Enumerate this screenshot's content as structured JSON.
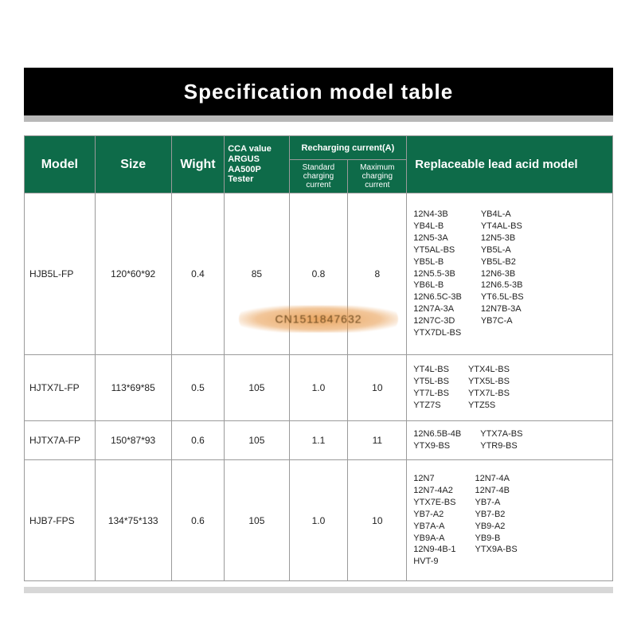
{
  "title": "Specification model table",
  "colors": {
    "title_bg": "#000000",
    "title_fg": "#ffffff",
    "header_bg": "#0e6b49",
    "header_fg": "#ffffff",
    "border": "#9a9a9a",
    "cell_fg": "#222222",
    "gray_band_top": "#b8b8b8",
    "gray_band_bottom": "#d7d7d7",
    "watermark_tint": "#e79746",
    "background": "#ffffff"
  },
  "typography": {
    "title_fontsize_pt": 20,
    "header_big_pt": 12,
    "header_small_pt": 8,
    "body_pt": 9,
    "replaceable_list_pt": 8
  },
  "columns": [
    {
      "key": "model",
      "label": "Model",
      "width_pct": 12
    },
    {
      "key": "size",
      "label": "Size",
      "width_pct": 13
    },
    {
      "key": "wight",
      "label": "Wight",
      "width_pct": 9
    },
    {
      "key": "cca",
      "label": "CCA value ARGUS AA500P Tester",
      "width_pct": 11
    },
    {
      "key": "rc",
      "label": "Recharging current(A)",
      "width_pct": 20,
      "sub": [
        {
          "key": "rc_std",
          "label": "Standard charging current"
        },
        {
          "key": "rc_max",
          "label": "Maximum charging current"
        }
      ]
    },
    {
      "key": "rep",
      "label": "Replaceable lead acid model",
      "width_pct": 35
    }
  ],
  "rows": [
    {
      "model": "HJB5L-FP",
      "size": "120*60*92",
      "wight": "0.4",
      "cca": "85",
      "rc_std": "0.8",
      "rc_max": "8",
      "rep_col1": [
        "12N4-3B",
        "YB4L-B",
        "12N5-3A",
        "YT5AL-BS",
        "YB5L-B",
        "12N5.5-3B",
        "YB6L-B",
        "12N6.5C-3B",
        "12N7A-3A",
        "12N7C-3D",
        "YTX7DL-BS"
      ],
      "rep_col2": [
        "YB4L-A",
        "YT4AL-BS",
        "12N5-3B",
        "YB5L-A",
        "YB5L-B2",
        "12N6-3B",
        "12N6.5-3B",
        "YT6.5L-BS",
        "12N7B-3A",
        "YB7C-A"
      ]
    },
    {
      "model": "HJTX7L-FP",
      "size": "113*69*85",
      "wight": "0.5",
      "cca": "105",
      "rc_std": "1.0",
      "rc_max": "10",
      "rep_col1": [
        "YT4L-BS",
        "YT5L-BS",
        "YT7L-BS",
        "YTZ7S"
      ],
      "rep_col2": [
        "YTX4L-BS",
        "YTX5L-BS",
        "YTX7L-BS",
        "YTZ5S"
      ]
    },
    {
      "model": "HJTX7A-FP",
      "size": "150*87*93",
      "wight": "0.6",
      "cca": "105",
      "rc_std": "1.1",
      "rc_max": "11",
      "rep_col1": [
        "12N6.5B-4B",
        "YTX9-BS"
      ],
      "rep_col2": [
        "YTX7A-BS",
        "YTR9-BS"
      ]
    },
    {
      "model": "HJB7-FPS",
      "size": "134*75*133",
      "wight": "0.6",
      "cca": "105",
      "rc_std": "1.0",
      "rc_max": "10",
      "rep_col1": [
        "12N7",
        "12N7-4A2",
        "YTX7E-BS",
        "YB7-A2",
        "YB7A-A",
        "YB9A-A",
        "12N9-4B-1",
        "HVT-9"
      ],
      "rep_col2": [
        "12N7-4A",
        "12N7-4B",
        "YB7-A",
        "YB7-B2",
        "YB9-A2",
        "YB9-B",
        "YTX9A-BS"
      ]
    }
  ],
  "watermark_text": "CN1511847632"
}
